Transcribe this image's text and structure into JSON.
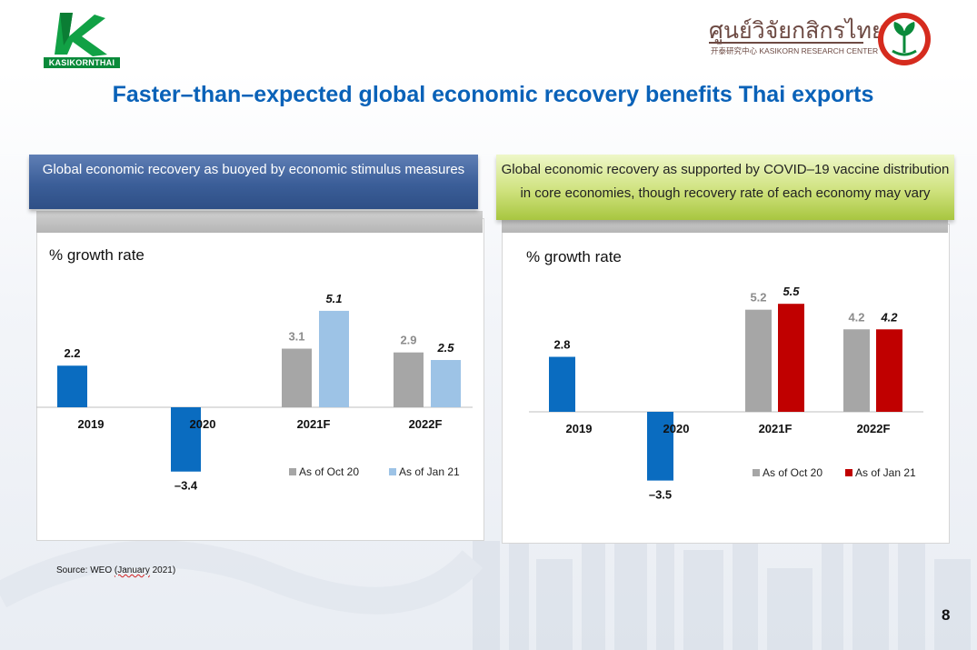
{
  "brand": {
    "left_logo_text": "KASIKORNTHAI",
    "right_logo_thai": "ศูนย์วิจัยกสิกรไทย",
    "right_logo_sub": "开泰研究中心 KASIKORN RESEARCH CENTER"
  },
  "title": "Faster–than–expected global economic recovery benefits Thai exports",
  "panels": {
    "left_header": "Global economic recovery as buoyed by economic stimulus measures",
    "right_header": "Global economic recovery as supported by COVID–19 vaccine distribution in core economies, though recovery rate of each economy may vary"
  },
  "chart_data": [
    {
      "type": "bar",
      "ylabel": "% growth rate",
      "categories": [
        "2019",
        "2020",
        "2021F",
        "2022F"
      ],
      "single_value_categories": [
        "2019",
        "2020"
      ],
      "actual_values": [
        2.2,
        -3.4
      ],
      "actual_labels": [
        "2.2",
        "–3.4"
      ],
      "series": [
        {
          "name": "As of Oct 20",
          "values": [
            null,
            null,
            3.1,
            2.9
          ],
          "labels": [
            "",
            "",
            "3.1",
            "2.9"
          ]
        },
        {
          "name": "As of Jan 21",
          "values": [
            null,
            null,
            5.1,
            2.5
          ],
          "labels": [
            "",
            "",
            "5.1",
            "2.5"
          ]
        }
      ],
      "colors": {
        "actual": "#0a6cc0",
        "oct": "#a6a6a6",
        "jan": "#9dc3e6"
      },
      "legend_position": "bottom-right"
    },
    {
      "type": "bar",
      "ylabel": "% growth rate",
      "categories": [
        "2019",
        "2020",
        "2021F",
        "2022F"
      ],
      "single_value_categories": [
        "2019",
        "2020"
      ],
      "actual_values": [
        2.8,
        -3.5
      ],
      "actual_labels": [
        "2.8",
        "–3.5"
      ],
      "series": [
        {
          "name": "As of Oct 20",
          "values": [
            null,
            null,
            5.2,
            4.2
          ],
          "labels": [
            "",
            "",
            "5.2",
            "4.2"
          ]
        },
        {
          "name": "As of Jan 21",
          "values": [
            null,
            null,
            5.5,
            4.2
          ],
          "labels": [
            "",
            "",
            "5.5",
            "4.2"
          ]
        }
      ],
      "colors": {
        "actual": "#0a6cc0",
        "oct": "#a6a6a6",
        "jan": "#c00000"
      },
      "legend_position": "bottom-right"
    }
  ],
  "source_prefix": "Source: WEO ",
  "source_wavy": "(January",
  "source_suffix": " 2021)",
  "page_number": "8"
}
